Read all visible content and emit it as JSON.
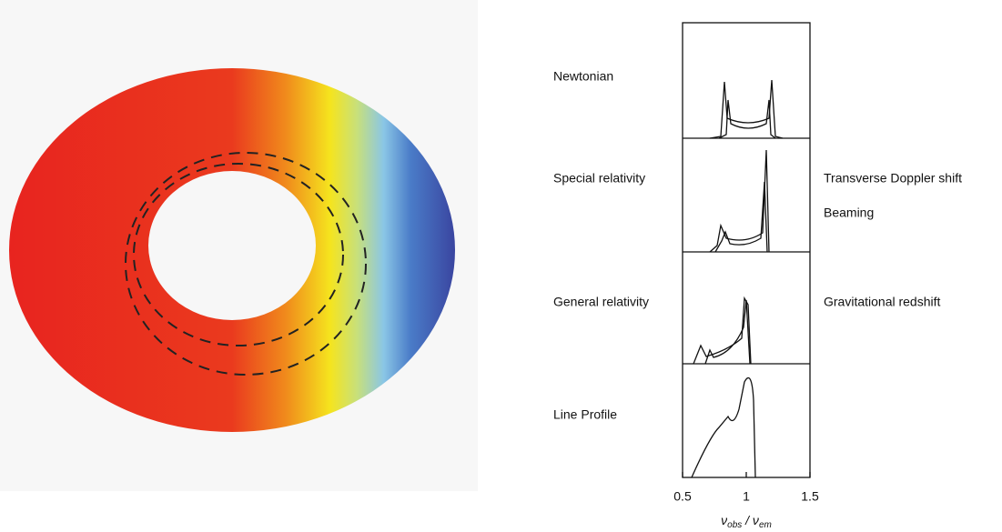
{
  "panels": [
    {
      "label": "Newtonian"
    },
    {
      "label": "Special relativity"
    },
    {
      "label": "General relativity"
    },
    {
      "label": "Line Profile"
    }
  ],
  "annotations": [
    "Transverse Doppler shift",
    "Beaming",
    "Gravitational redshift"
  ],
  "axis": {
    "xlim": [
      0.5,
      1.5
    ],
    "xticks": [
      0.5,
      1,
      1.5
    ],
    "label_parts": [
      "ν",
      "obs",
      " / ν",
      "em"
    ]
  }
}
